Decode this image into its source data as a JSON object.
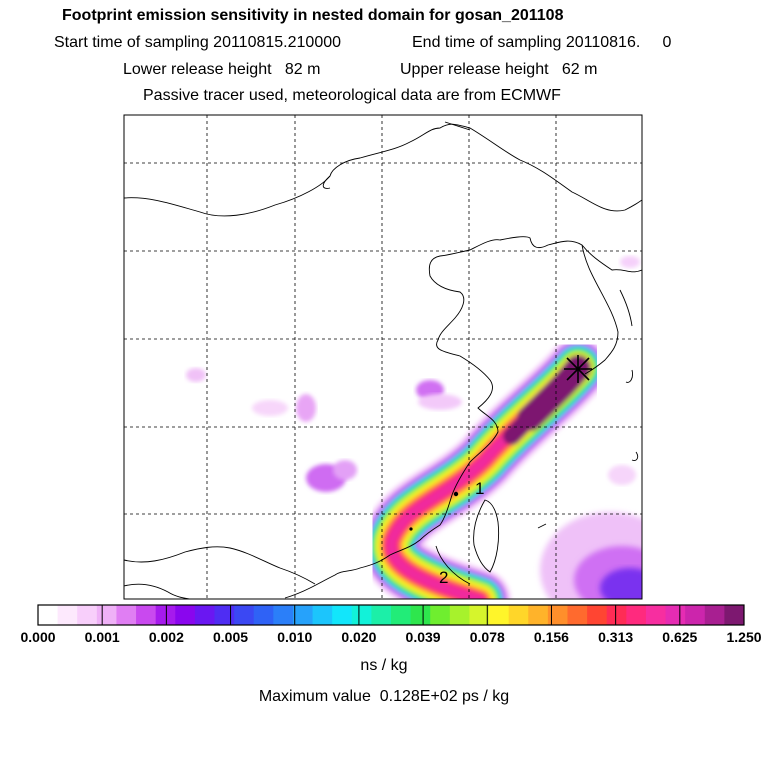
{
  "header": {
    "title": "Footprint emission sensitivity in nested domain for gosan_201108",
    "start_label": "Start time of sampling 20110815.210000",
    "end_label": "End time of sampling 20110816.     0",
    "lower_release": "Lower release height   82 m",
    "upper_release": "Upper release height   62 m",
    "tracer_note": "Passive tracer used, meteorological data are from ECMWF"
  },
  "map": {
    "site_labels": [
      "1",
      "2"
    ],
    "site_marker": "receptor-star-icon"
  },
  "legend": {
    "tick_labels": [
      "0.000",
      "0.001",
      "0.002",
      "0.005",
      "0.010",
      "0.020",
      "0.039",
      "0.078",
      "0.156",
      "0.313",
      "0.625",
      "1.250"
    ],
    "colors": [
      "#ffffff",
      "#fde9fd",
      "#f8cffb",
      "#efb1f7",
      "#e07ef3",
      "#c949ef",
      "#a61aed",
      "#8a06ee",
      "#6a17f2",
      "#4f2df3",
      "#3b48f3",
      "#2f62f6",
      "#2b7ff9",
      "#26a2fb",
      "#1cc5fc",
      "#12e6fb",
      "#12f2d9",
      "#1cefa8",
      "#22ec78",
      "#2ee64d",
      "#6fee2f",
      "#a7f22c",
      "#d6f52c",
      "#fff52a",
      "#ffd629",
      "#ffb32a",
      "#ff8f2b",
      "#ff6a2e",
      "#ff4532",
      "#ff2c55",
      "#ff2a7e",
      "#f72ea0",
      "#e62cb3",
      "#cc25ac",
      "#a81f91",
      "#7d1870"
    ],
    "unit": "ns / kg",
    "max_value": "Maximum value  0.128E+02 ps / kg"
  }
}
